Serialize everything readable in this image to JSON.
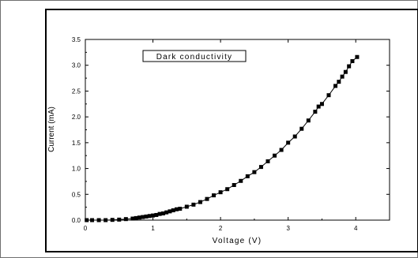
{
  "chart_data": {
    "type": "scatter",
    "annotation": "Dark conductivity",
    "xlabel": "Voltage (V)",
    "ylabel": "Current (mA)",
    "xlim": [
      0,
      4.5
    ],
    "ylim": [
      0,
      3.5
    ],
    "xticks": [
      "0",
      "1",
      "2",
      "3",
      "4"
    ],
    "yticks": [
      "0.0",
      "0.5",
      "1.0",
      "1.5",
      "2.0",
      "2.5",
      "3.0",
      "3.5"
    ],
    "grid": false,
    "marker": "square",
    "fit_line": true,
    "series": [
      {
        "x": [
          0.02,
          0.1,
          0.2,
          0.3,
          0.4,
          0.5,
          0.6,
          0.7,
          0.75,
          0.8,
          0.85,
          0.9,
          0.95,
          1.0,
          1.05,
          1.1,
          1.15,
          1.2,
          1.25,
          1.3,
          1.35,
          1.4,
          1.5,
          1.6,
          1.7,
          1.8,
          1.9,
          2.0,
          2.1,
          2.2,
          2.3,
          2.4,
          2.5,
          2.6,
          2.7,
          2.8,
          2.9,
          3.0,
          3.1,
          3.2,
          3.3,
          3.4,
          3.45,
          3.5,
          3.6,
          3.7,
          3.75,
          3.8,
          3.85,
          3.9,
          3.95,
          4.02
        ],
        "y": [
          0.0,
          0.0,
          0.0,
          0.0,
          0.005,
          0.01,
          0.02,
          0.03,
          0.04,
          0.05,
          0.06,
          0.07,
          0.08,
          0.09,
          0.1,
          0.12,
          0.13,
          0.15,
          0.17,
          0.19,
          0.21,
          0.22,
          0.26,
          0.3,
          0.35,
          0.41,
          0.48,
          0.54,
          0.6,
          0.68,
          0.76,
          0.85,
          0.93,
          1.03,
          1.14,
          1.25,
          1.36,
          1.5,
          1.62,
          1.77,
          1.93,
          2.1,
          2.2,
          2.25,
          2.42,
          2.6,
          2.68,
          2.78,
          2.87,
          2.98,
          3.08,
          3.16
        ]
      }
    ]
  }
}
